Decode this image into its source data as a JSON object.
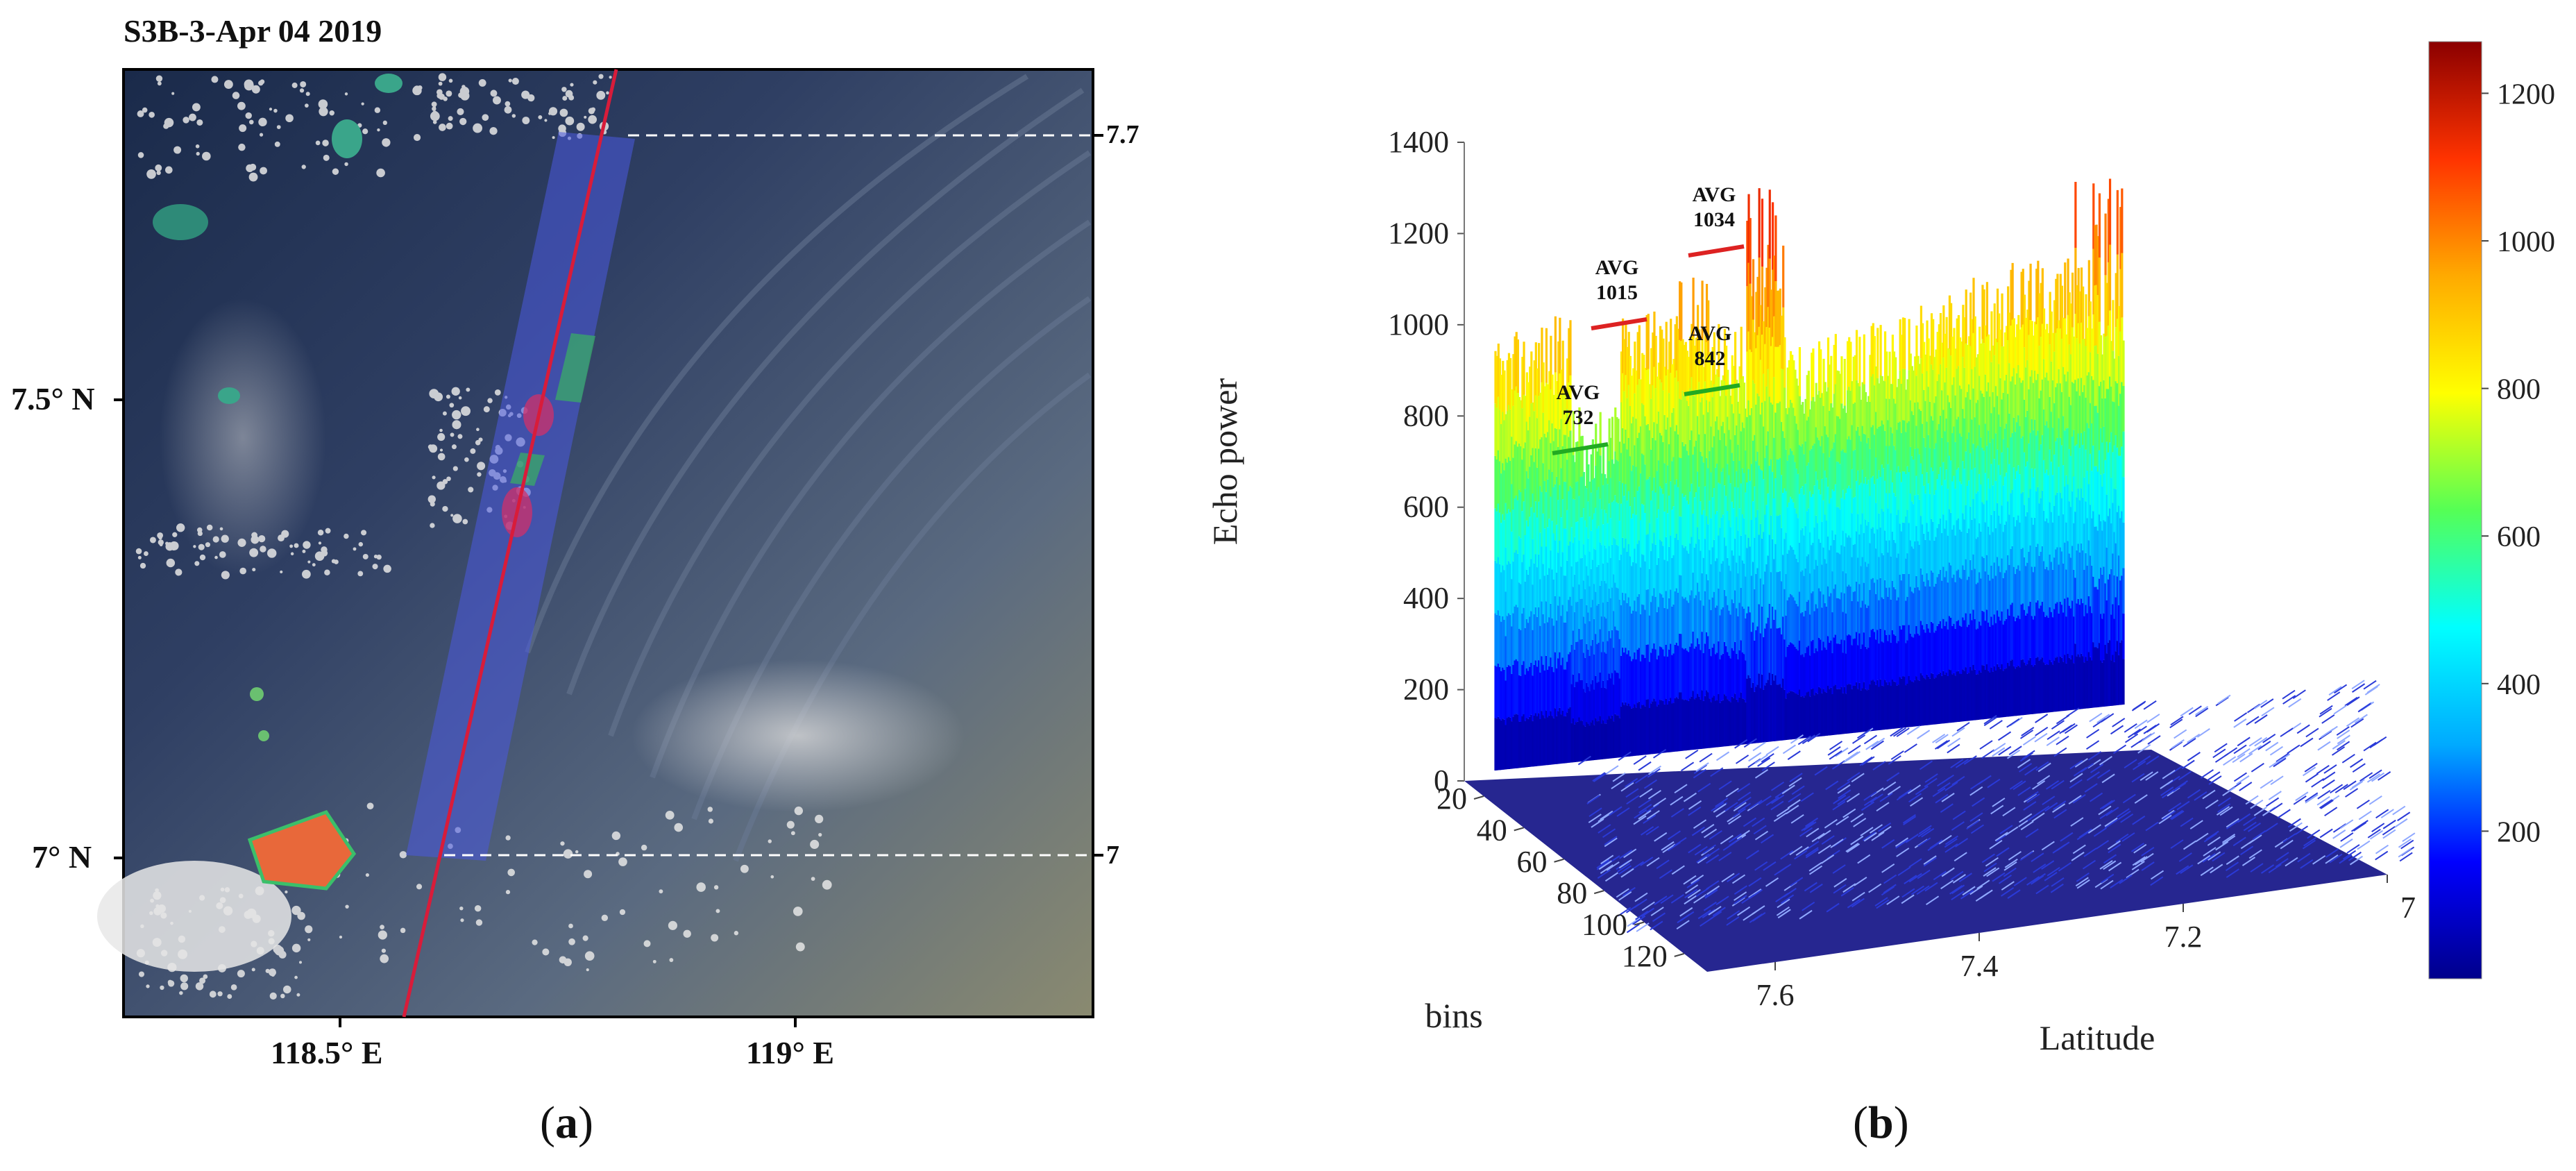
{
  "panel_a": {
    "title": "S3B-3-Apr 04 2019",
    "lat_labels": [
      {
        "text": "7.5° N"
      },
      {
        "text": "7° N"
      }
    ],
    "lon_labels": [
      {
        "text": "118.5° E"
      },
      {
        "text": "119° E"
      }
    ],
    "track_marks": [
      {
        "text": "7.7"
      },
      {
        "text": "7"
      }
    ],
    "panel_label": "a"
  },
  "panel_b": {
    "panel_label": "b",
    "colorbar": {
      "ticks": [
        "1200",
        "1000",
        "800",
        "600",
        "400",
        "200"
      ],
      "colors": [
        "#00008b",
        "#0000ff",
        "#00aaff",
        "#00ffff",
        "#55ff55",
        "#ffff00",
        "#ffaa00",
        "#ff3300",
        "#8b0000"
      ]
    }
  },
  "chart_data": {
    "type": "surface3d",
    "title": "",
    "zlabel": "Echo power",
    "xlabel": "Latitude",
    "ylabel": "bins",
    "zlim": [
      0,
      1400
    ],
    "z_ticks": [
      "0",
      "200",
      "400",
      "600",
      "800",
      "1000",
      "1200",
      "1400"
    ],
    "lat_ticks": [
      "7.6",
      "7.4",
      "7.2",
      "7"
    ],
    "bin_ticks": [
      "20",
      "40",
      "60",
      "80",
      "100",
      "120"
    ],
    "colorbar_range": [
      0,
      1270
    ],
    "annotations": [
      {
        "label": "AVG",
        "value": "732",
        "color": "#22aa22"
      },
      {
        "label": "AVG",
        "value": "1015",
        "color": "#dd2222"
      },
      {
        "label": "AVG",
        "value": "842",
        "color": "#22aa22"
      },
      {
        "label": "AVG",
        "value": "1034",
        "color": "#dd2222"
      }
    ]
  }
}
